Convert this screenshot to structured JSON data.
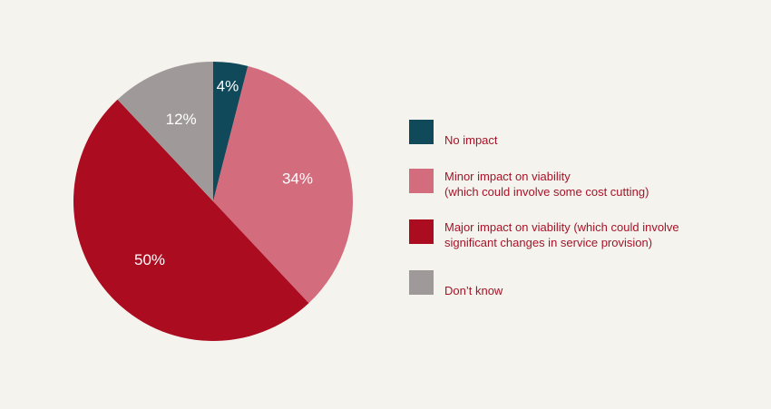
{
  "chart_data": {
    "type": "pie",
    "slices": [
      {
        "label": "No impact",
        "value": 4,
        "display": "4%",
        "color": "#10495a"
      },
      {
        "label": "Minor impact on viability\n(which could involve some cost cutting)",
        "value": 34,
        "display": "34%",
        "color": "#d36c7d"
      },
      {
        "label": "Major impact on viability (which could involve\nsignificant changes in service provision)",
        "value": 50,
        "display": "50%",
        "color": "#ab0c20"
      },
      {
        "label": "Don’t know",
        "value": 12,
        "display": "12%",
        "color": "#9f9a99"
      }
    ],
    "legend_position": "right"
  }
}
